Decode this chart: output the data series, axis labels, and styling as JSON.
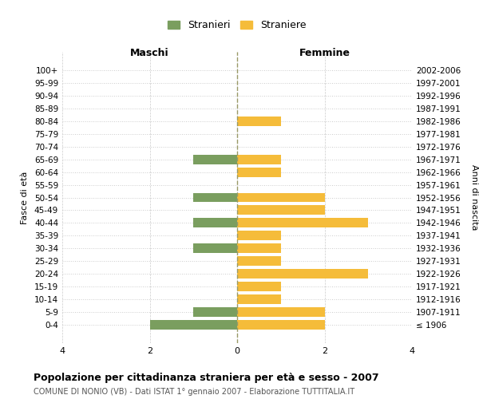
{
  "age_groups": [
    "100+",
    "95-99",
    "90-94",
    "85-89",
    "80-84",
    "75-79",
    "70-74",
    "65-69",
    "60-64",
    "55-59",
    "50-54",
    "45-49",
    "40-44",
    "35-39",
    "30-34",
    "25-29",
    "20-24",
    "15-19",
    "10-14",
    "5-9",
    "0-4"
  ],
  "birth_years": [
    "≤ 1906",
    "1907-1911",
    "1912-1916",
    "1917-1921",
    "1922-1926",
    "1927-1931",
    "1932-1936",
    "1937-1941",
    "1942-1946",
    "1947-1951",
    "1952-1956",
    "1957-1961",
    "1962-1966",
    "1967-1971",
    "1972-1976",
    "1977-1981",
    "1982-1986",
    "1987-1991",
    "1992-1996",
    "1997-2001",
    "2002-2006"
  ],
  "maschi": [
    0,
    0,
    0,
    0,
    0,
    0,
    0,
    1,
    0,
    0,
    1,
    0,
    1,
    0,
    1,
    0,
    0,
    0,
    0,
    1,
    2
  ],
  "femmine": [
    0,
    0,
    0,
    0,
    1,
    0,
    0,
    1,
    1,
    0,
    2,
    2,
    3,
    1,
    1,
    1,
    3,
    1,
    1,
    2,
    2
  ],
  "color_maschi": "#7a9e5f",
  "color_femmine": "#f5bc3a",
  "title": "Popolazione per cittadinanza straniera per età e sesso - 2007",
  "subtitle": "COMUNE DI NONIO (VB) - Dati ISTAT 1° gennaio 2007 - Elaborazione TUTTITALIA.IT",
  "xlabel_left": "Maschi",
  "xlabel_right": "Femmine",
  "ylabel_left": "Fasce di età",
  "ylabel_right": "Anni di nascita",
  "legend_stranieri": "Stranieri",
  "legend_straniere": "Straniere",
  "xlim": 4,
  "background_color": "#ffffff",
  "grid_color": "#cccccc",
  "dashed_line_color": "#999966",
  "bar_height": 0.75
}
